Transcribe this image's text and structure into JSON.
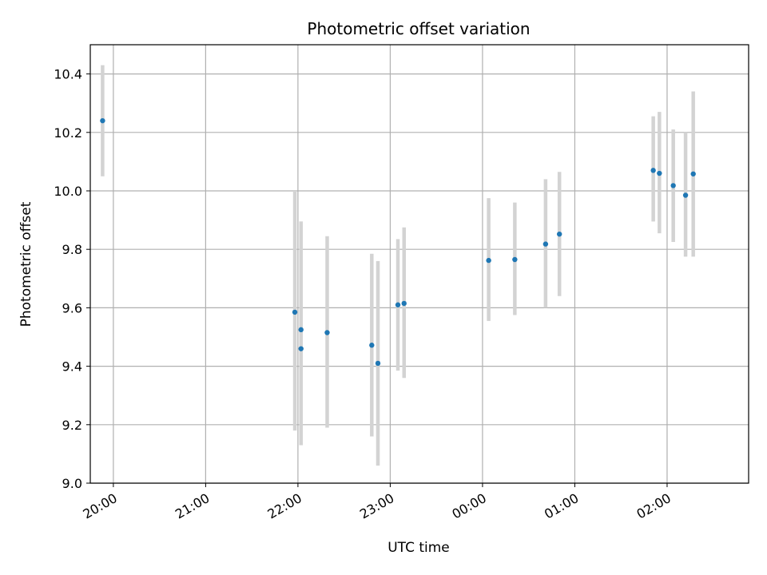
{
  "chart_data": {
    "type": "scatter",
    "title": "Photometric offset variation",
    "xlabel": "UTC time",
    "ylabel": "Photometric offset",
    "grid": true,
    "legend": "none",
    "ylim": [
      9.0,
      10.5
    ],
    "xlim": [
      "19:45",
      "02:53"
    ],
    "y_ticks": [
      "9.0",
      "9.2",
      "9.4",
      "9.6",
      "9.8",
      "10.0",
      "10.2",
      "10.4"
    ],
    "x_ticks": [
      "20:00",
      "21:00",
      "22:00",
      "23:00",
      "00:00",
      "01:00",
      "02:00"
    ],
    "colors": {
      "marker": "#1f77b4",
      "errorbar": "#d3d3d3",
      "grid": "#b0b0b0"
    },
    "series": [
      {
        "points": [
          {
            "x": "19:53",
            "y": 10.24,
            "yerr": [
              10.05,
              10.43
            ]
          },
          {
            "x": "21:58",
            "y": 9.585,
            "yerr": [
              9.18,
              10.0
            ]
          },
          {
            "x": "22:02",
            "y": 9.46,
            "yerr": [
              9.13,
              9.895
            ]
          },
          {
            "x": "22:02",
            "y": 9.525,
            "yerr": [
              9.13,
              9.895
            ]
          },
          {
            "x": "22:19",
            "y": 9.515,
            "yerr": [
              9.19,
              9.845
            ]
          },
          {
            "x": "22:48",
            "y": 9.472,
            "yerr": [
              9.16,
              9.785
            ]
          },
          {
            "x": "22:52",
            "y": 9.41,
            "yerr": [
              9.06,
              9.76
            ]
          },
          {
            "x": "23:05",
            "y": 9.61,
            "yerr": [
              9.385,
              9.835
            ]
          },
          {
            "x": "23:09",
            "y": 9.615,
            "yerr": [
              9.36,
              9.875
            ]
          },
          {
            "x": "00:04",
            "y": 9.762,
            "yerr": [
              9.555,
              9.975
            ]
          },
          {
            "x": "00:21",
            "y": 9.765,
            "yerr": [
              9.575,
              9.96
            ]
          },
          {
            "x": "00:41",
            "y": 9.818,
            "yerr": [
              9.6,
              10.04
            ]
          },
          {
            "x": "00:50",
            "y": 9.852,
            "yerr": [
              9.64,
              10.065
            ]
          },
          {
            "x": "01:51",
            "y": 10.07,
            "yerr": [
              9.895,
              10.255
            ]
          },
          {
            "x": "01:55",
            "y": 10.06,
            "yerr": [
              9.855,
              10.27
            ]
          },
          {
            "x": "02:04",
            "y": 10.018,
            "yerr": [
              9.825,
              10.21
            ]
          },
          {
            "x": "02:12",
            "y": 9.985,
            "yerr": [
              9.775,
              10.2
            ]
          },
          {
            "x": "02:17",
            "y": 10.058,
            "yerr": [
              9.775,
              10.34
            ]
          }
        ]
      }
    ]
  }
}
